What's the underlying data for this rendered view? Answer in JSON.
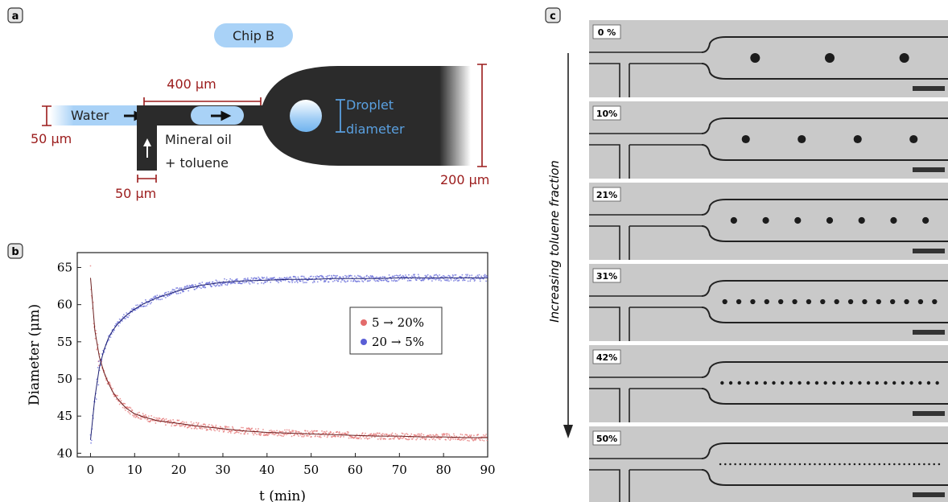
{
  "panel_a": {
    "label": "a",
    "chip_name": "Chip B",
    "water_label": "Water",
    "oil_label_line1": "Mineral oil",
    "oil_label_line2": "+ toluene",
    "channel_length_label": "400 μm",
    "inlet_height_label": "50 μm",
    "inlet_width_label": "50 μm",
    "outlet_height_label": "200 μm",
    "droplet_label_line1": "Droplet",
    "droplet_label_line2": "diameter",
    "colors": {
      "channel": "#2b2b2b",
      "water": "#9fcdf5",
      "dimension": "#9b1b1b",
      "droplet_text": "#5aa0e0",
      "chip_badge": "#a9d2f7"
    }
  },
  "panel_b": {
    "label": "b"
  },
  "chart_data": {
    "type": "line",
    "xlabel": "t (min)",
    "ylabel": "Diameter (μm)",
    "xlim": [
      -3,
      90
    ],
    "ylim": [
      39.5,
      67
    ],
    "xticks": [
      0,
      10,
      20,
      30,
      40,
      50,
      60,
      70,
      80,
      90
    ],
    "yticks": [
      40,
      45,
      50,
      55,
      60,
      65
    ],
    "legend_position": "right",
    "series": [
      {
        "name": "5 → 20%",
        "color": "#e36b6b",
        "x": [
          0,
          1,
          2,
          3,
          4,
          5,
          6,
          8,
          10,
          12,
          15,
          20,
          25,
          30,
          35,
          40,
          45,
          50,
          55,
          60,
          65,
          70,
          75,
          80,
          85,
          90
        ],
        "values": [
          63.6,
          56.5,
          53.0,
          51.0,
          49.5,
          48.3,
          47.4,
          46.1,
          45.3,
          44.9,
          44.4,
          44.0,
          43.6,
          43.3,
          43.0,
          42.8,
          42.7,
          42.6,
          42.5,
          42.4,
          42.3,
          42.3,
          42.2,
          42.2,
          42.1,
          42.1
        ]
      },
      {
        "name": "20 → 5%",
        "color": "#5a5fd6",
        "x": [
          0,
          1,
          2,
          3,
          4,
          5,
          6,
          8,
          10,
          12,
          15,
          20,
          25,
          30,
          35,
          40,
          45,
          50,
          55,
          60,
          65,
          70,
          75,
          80,
          85,
          90
        ],
        "values": [
          41.8,
          47.5,
          51.5,
          53.8,
          55.4,
          56.5,
          57.3,
          58.5,
          59.4,
          60.1,
          60.9,
          61.9,
          62.6,
          63.0,
          63.2,
          63.3,
          63.4,
          63.4,
          63.5,
          63.5,
          63.5,
          63.6,
          63.6,
          63.6,
          63.6,
          63.6
        ]
      }
    ]
  },
  "panel_c": {
    "label": "c",
    "axis_label": "Increasing toluene fraction",
    "frames": [
      {
        "label": "0 %",
        "droplets": 3
      },
      {
        "label": "10%",
        "droplets": 4
      },
      {
        "label": "21%",
        "droplets": 7
      },
      {
        "label": "31%",
        "droplets": 16
      },
      {
        "label": "42%",
        "droplets": 26
      },
      {
        "label": "50%",
        "droplets": 45
      }
    ]
  }
}
